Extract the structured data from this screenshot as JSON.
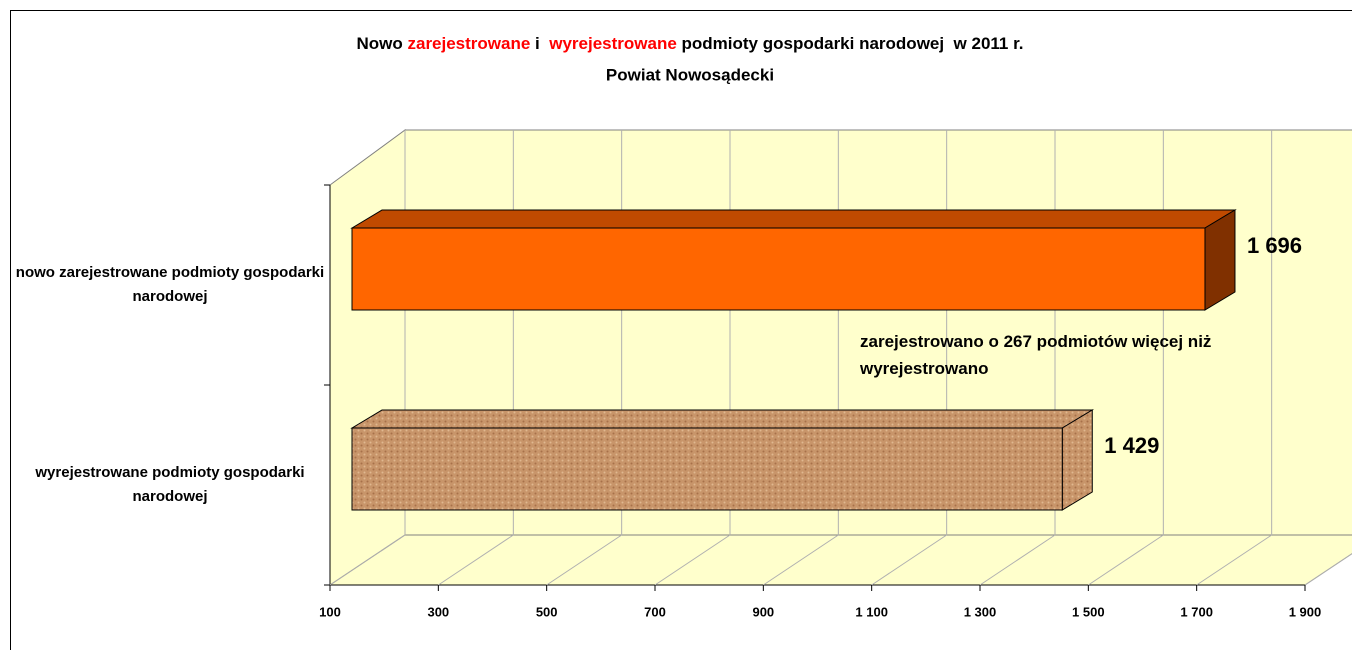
{
  "chart_data": {
    "type": "bar3d",
    "title": [
      {
        "text": "Nowo ",
        "color": "#000000"
      },
      {
        "text": "zarejestrowane",
        "color": "#ff0000"
      },
      {
        "text": " i  ",
        "color": "#000000"
      },
      {
        "text": "wyrejestrowane",
        "color": "#ff0000"
      },
      {
        "text": " podmioty gospodarki narodowej  w 2011 r.",
        "color": "#000000"
      }
    ],
    "subtitle": "Powiat Nowosądecki",
    "categories": [
      "nowo zarejestrowane podmioty gospodarki narodowej",
      "wyrejestrowane podmioty gospodarki narodowej"
    ],
    "values": [
      1696,
      1429
    ],
    "value_labels": [
      "1 696",
      "1 429"
    ],
    "colors": [
      "#ff6600",
      "#c8956a"
    ],
    "annotation": "zarejestrowano o 267 podmiotów więcej niż wyrejestrowano",
    "xlim": [
      100,
      1900
    ],
    "xticks": [
      100,
      300,
      500,
      700,
      900,
      {
        "value": 1100,
        "label": "1 100"
      },
      {
        "value": 1300,
        "label": "1 300"
      },
      {
        "value": 1500,
        "label": "1 500"
      },
      {
        "value": 1700,
        "label": "1 700"
      },
      {
        "value": 1900,
        "label": "1 900"
      }
    ],
    "grid": true
  }
}
